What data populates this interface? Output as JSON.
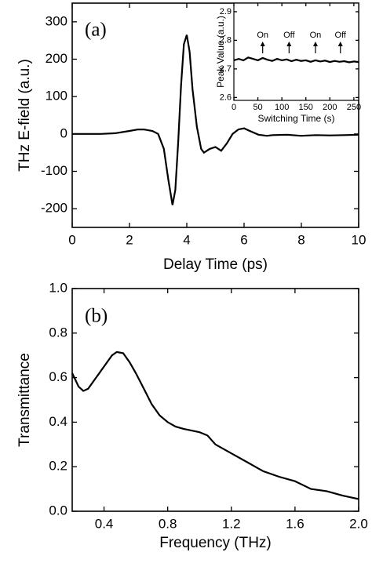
{
  "chart_data": [
    {
      "type": "line",
      "panel_label": "(a)",
      "x_label": "Delay Time (ps)",
      "y_label": "THz E-field (a.u.)",
      "xlim": [
        0,
        10
      ],
      "ylim": [
        -250,
        350
      ],
      "xticks": [
        0,
        2,
        4,
        6,
        8,
        10
      ],
      "yticks": [
        -200,
        -100,
        0,
        100,
        200,
        300
      ],
      "color": "#000000",
      "x": [
        0,
        0.5,
        1,
        1.5,
        2,
        2.3,
        2.5,
        2.8,
        3,
        3.2,
        3.35,
        3.5,
        3.6,
        3.7,
        3.8,
        3.9,
        4.0,
        4.1,
        4.2,
        4.35,
        4.5,
        4.6,
        4.8,
        5.0,
        5.2,
        5.4,
        5.6,
        5.8,
        6.0,
        6.2,
        6.5,
        6.8,
        7,
        7.5,
        8,
        8.5,
        9,
        9.5,
        10
      ],
      "values": [
        0,
        0,
        0,
        2,
        8,
        12,
        12,
        8,
        0,
        -40,
        -120,
        -190,
        -150,
        -20,
        130,
        240,
        265,
        220,
        120,
        20,
        -40,
        -50,
        -40,
        -35,
        -45,
        -25,
        0,
        12,
        15,
        8,
        -2,
        -5,
        -3,
        -2,
        -5,
        -3,
        -4,
        -3,
        -2
      ]
    },
    {
      "type": "line",
      "x_label": "Switching Time (s)",
      "y_label": "Peak Value (a.u.)",
      "xlim": [
        0,
        260
      ],
      "ylim": [
        2.59,
        2.93
      ],
      "xticks": [
        0,
        50,
        100,
        150,
        200,
        250
      ],
      "yticks": [
        2.6,
        2.7,
        2.8,
        2.9
      ],
      "color": "#000000",
      "x": [
        0,
        10,
        20,
        30,
        40,
        50,
        60,
        70,
        80,
        90,
        100,
        110,
        120,
        130,
        140,
        150,
        160,
        170,
        180,
        190,
        200,
        210,
        220,
        230,
        240,
        250,
        260
      ],
      "values": [
        2.73,
        2.735,
        2.73,
        2.74,
        2.735,
        2.73,
        2.738,
        2.732,
        2.728,
        2.735,
        2.73,
        2.733,
        2.727,
        2.732,
        2.728,
        2.73,
        2.725,
        2.73,
        2.726,
        2.729,
        2.724,
        2.728,
        2.725,
        2.727,
        2.723,
        2.726,
        2.724
      ],
      "annotations": [
        {
          "text": "On",
          "x": 60
        },
        {
          "text": "Off",
          "x": 115
        },
        {
          "text": "On",
          "x": 170
        },
        {
          "text": "Off",
          "x": 222
        }
      ]
    },
    {
      "type": "line",
      "panel_label": "(b)",
      "x_label": "Frequency (THz)",
      "y_label": "Transmittance",
      "xlim": [
        0.2,
        2.0
      ],
      "ylim": [
        0,
        1
      ],
      "xticks": [
        0.4,
        0.8,
        1.2,
        1.6,
        {
          "value": 2,
          "label": "2.0"
        }
      ],
      "yticks": [
        {
          "value": 0,
          "label": "0.0"
        },
        0.2,
        0.4,
        0.6,
        0.8,
        {
          "value": 1,
          "label": "1.0"
        }
      ],
      "color": "#000000",
      "x": [
        0.2,
        0.24,
        0.27,
        0.3,
        0.35,
        0.4,
        0.45,
        0.48,
        0.52,
        0.56,
        0.6,
        0.65,
        0.7,
        0.75,
        0.8,
        0.85,
        0.9,
        1.0,
        1.05,
        1.1,
        1.2,
        1.3,
        1.4,
        1.5,
        1.6,
        1.7,
        1.8,
        1.9,
        2.0
      ],
      "values": [
        0.62,
        0.56,
        0.54,
        0.55,
        0.6,
        0.65,
        0.7,
        0.715,
        0.71,
        0.67,
        0.62,
        0.55,
        0.48,
        0.43,
        0.4,
        0.38,
        0.37,
        0.355,
        0.34,
        0.3,
        0.26,
        0.22,
        0.18,
        0.155,
        0.135,
        0.1,
        0.09,
        0.07,
        0.055
      ]
    }
  ]
}
